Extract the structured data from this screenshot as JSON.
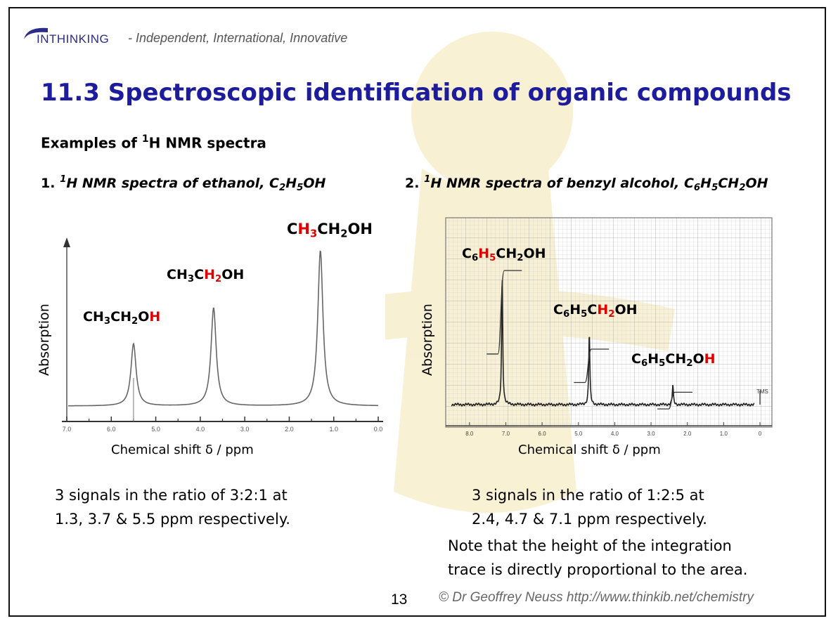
{
  "header": {
    "logo_text": "INTHINKING",
    "tagline": "- Independent, International, Innovative"
  },
  "title": "11.3 Spectroscopic identification of organic compounds",
  "subtitle": {
    "before": "Examples of ",
    "sup": "1",
    "after": "H NMR spectra"
  },
  "chart_data": [
    {
      "type": "line",
      "heading": "1. 1H NMR spectra of ethanol, C2H5OH",
      "ylabel": "Absorption",
      "xlabel": "Chemical shift δ / ppm",
      "xlim": [
        7.0,
        0.0
      ],
      "x_ticks": [
        "7.0",
        "6.0",
        "5.0",
        "4.0",
        "3.0",
        "2.0",
        "1.0",
        "0.0"
      ],
      "peaks": [
        {
          "shift": 5.5,
          "relative_height": 0.38,
          "label": "CH3CH2OH",
          "highlight": "H (of OH)"
        },
        {
          "shift": 3.7,
          "relative_height": 0.6,
          "label": "CH3CH2OH",
          "highlight": "H2 (of CH2)"
        },
        {
          "shift": 1.3,
          "relative_height": 0.95,
          "label": "CH3CH2OH",
          "highlight": "H3 (of CH3)"
        }
      ]
    },
    {
      "type": "line",
      "heading": "2. 1H NMR spectra of benzyl alcohol, C6H5CH2OH",
      "ylabel": "Absorption",
      "xlabel": "Chemical shift δ / ppm",
      "xlim": [
        8.5,
        0.0
      ],
      "x_ticks": [
        "8.0",
        "7.0",
        "6.0",
        "5.0",
        "4.0",
        "3.0",
        "2.0",
        "1.0",
        "0"
      ],
      "reference_label": "TMS",
      "peaks": [
        {
          "shift": 7.1,
          "relative_height": 0.93,
          "integration_step": 0.6,
          "label": "C6H5CH2OH",
          "highlight": "H5"
        },
        {
          "shift": 4.7,
          "relative_height": 0.52,
          "integration_step": 0.24,
          "label": "C6H5CH2OH",
          "highlight": "H2"
        },
        {
          "shift": 2.4,
          "relative_height": 0.14,
          "integration_step": 0.12,
          "label": "C6H5CH2OH",
          "highlight": "H (of OH)"
        }
      ]
    }
  ],
  "descriptions": {
    "left_line1": "3 signals in the ratio of 3:2:1 at",
    "left_line2": "1.3, 3.7 & 5.5 ppm respectively.",
    "right_line1": "3 signals in the ratio of 1:2:5 at",
    "right_line2": "2.4, 4.7 & 7.1 ppm respectively.",
    "note_line1": "Note that the height of the integration",
    "note_line2": "trace is directly proportional to the area."
  },
  "footer": {
    "page_number": "13",
    "credit": "© Dr Geoffrey Neuss http://www.thinkib.net/chemistry"
  },
  "colors": {
    "title": "#1c1c9c",
    "highlight": "#e00000",
    "watermark": "#f6ecc9"
  }
}
